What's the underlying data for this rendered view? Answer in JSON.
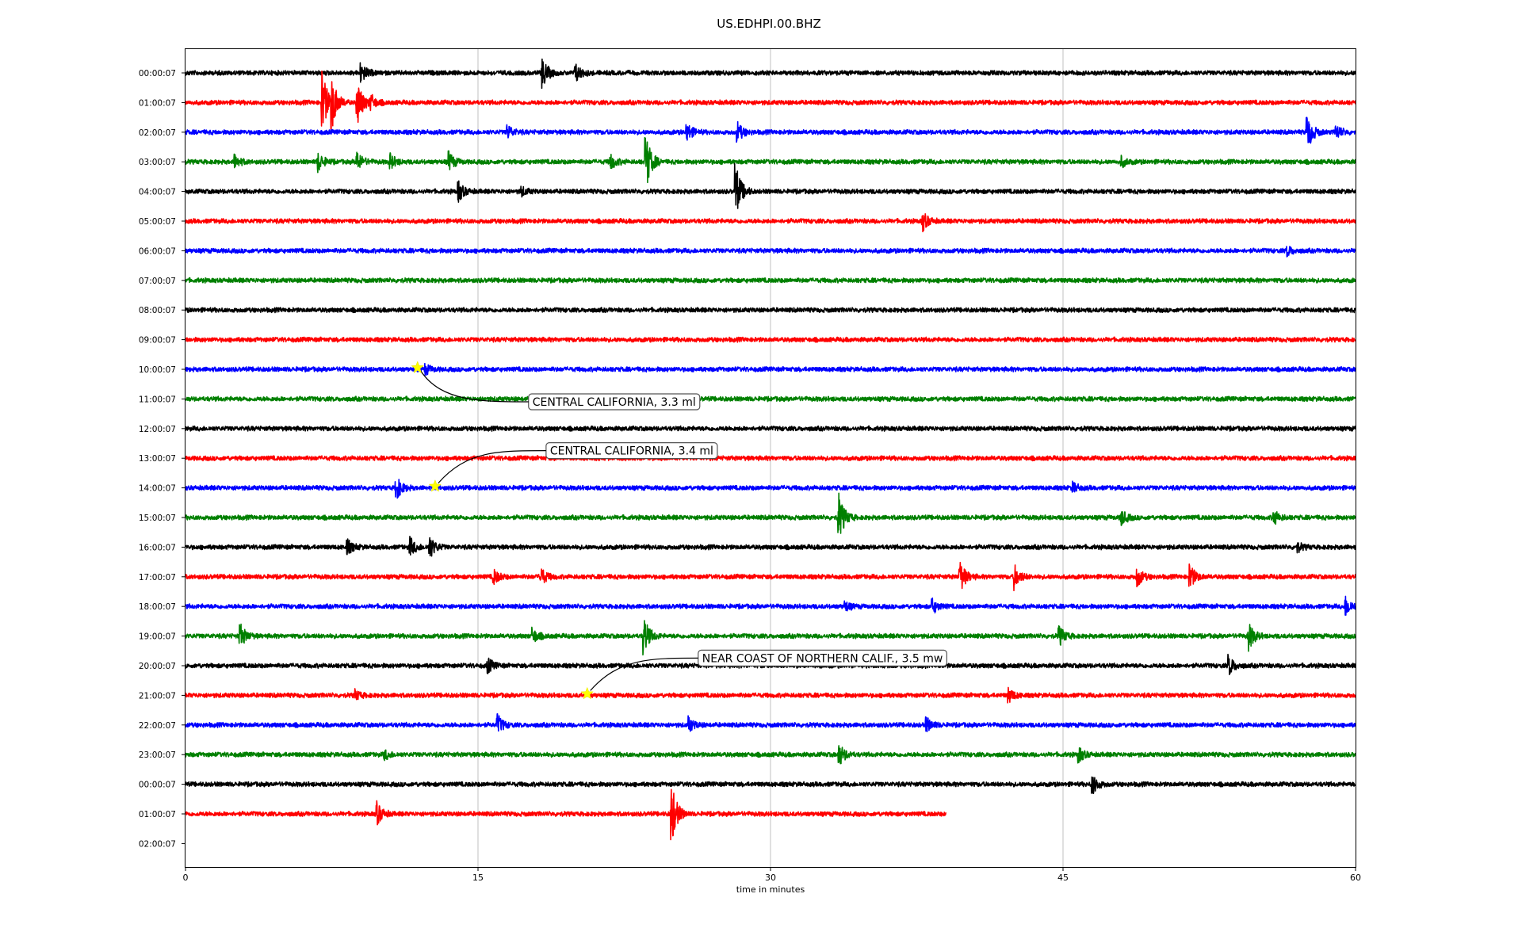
{
  "chart_data": {
    "type": "line",
    "chart_kind": "helicorder / dayplot seismogram",
    "title": "US.EDHPI.00.BHZ",
    "xlabel": "time in minutes",
    "ylabel": "",
    "xlim": [
      0,
      60
    ],
    "x_ticks": [
      0,
      15,
      30,
      45,
      60
    ],
    "x_tick_labels": [
      "0",
      "15",
      "30",
      "45",
      "60"
    ],
    "grid": "vertical lines at x ticks",
    "legend": "none",
    "row_labels": [
      "00:00:07",
      "01:00:07",
      "02:00:07",
      "03:00:07",
      "04:00:07",
      "05:00:07",
      "06:00:07",
      "07:00:07",
      "08:00:07",
      "09:00:07",
      "10:00:07",
      "11:00:07",
      "12:00:07",
      "13:00:07",
      "14:00:07",
      "15:00:07",
      "16:00:07",
      "17:00:07",
      "18:00:07",
      "19:00:07",
      "20:00:07",
      "21:00:07",
      "22:00:07",
      "23:00:07",
      "00:00:07",
      "01:00:07",
      "02:00:07"
    ],
    "trace_colors": [
      "#000000",
      "#ff0000",
      "#0000ff",
      "#008000"
    ],
    "trace_end_minutes": [
      60,
      60,
      60,
      60,
      60,
      60,
      60,
      60,
      60,
      60,
      60,
      60,
      60,
      60,
      60,
      60,
      60,
      60,
      60,
      60,
      60,
      60,
      60,
      60,
      60,
      39,
      null
    ],
    "bursts": [
      {
        "row": 0,
        "minute": 9.0,
        "amp": 4
      },
      {
        "row": 0,
        "minute": 18.3,
        "amp": 6
      },
      {
        "row": 0,
        "minute": 20.0,
        "amp": 4
      },
      {
        "row": 1,
        "minute": 7.0,
        "amp": 14
      },
      {
        "row": 1,
        "minute": 7.5,
        "amp": 10
      },
      {
        "row": 1,
        "minute": 8.8,
        "amp": 10
      },
      {
        "row": 1,
        "minute": 9.5,
        "amp": 3
      },
      {
        "row": 2,
        "minute": 16.5,
        "amp": 3
      },
      {
        "row": 2,
        "minute": 25.7,
        "amp": 4
      },
      {
        "row": 2,
        "minute": 28.3,
        "amp": 4
      },
      {
        "row": 2,
        "minute": 57.5,
        "amp": 8
      },
      {
        "row": 2,
        "minute": 59.0,
        "amp": 3
      },
      {
        "row": 3,
        "minute": 2.5,
        "amp": 3
      },
      {
        "row": 3,
        "minute": 6.8,
        "amp": 4
      },
      {
        "row": 3,
        "minute": 8.8,
        "amp": 4
      },
      {
        "row": 3,
        "minute": 10.5,
        "amp": 3
      },
      {
        "row": 3,
        "minute": 13.5,
        "amp": 4
      },
      {
        "row": 3,
        "minute": 21.8,
        "amp": 3
      },
      {
        "row": 3,
        "minute": 23.6,
        "amp": 12
      },
      {
        "row": 3,
        "minute": 48.0,
        "amp": 2
      },
      {
        "row": 4,
        "minute": 14.0,
        "amp": 4
      },
      {
        "row": 4,
        "minute": 17.2,
        "amp": 2
      },
      {
        "row": 4,
        "minute": 28.2,
        "amp": 12
      },
      {
        "row": 5,
        "minute": 37.8,
        "amp": 4
      },
      {
        "row": 6,
        "minute": 56.5,
        "amp": 2
      },
      {
        "row": 10,
        "minute": 12.3,
        "amp": 2
      },
      {
        "row": 14,
        "minute": 10.8,
        "amp": 5
      },
      {
        "row": 14,
        "minute": 45.5,
        "amp": 2
      },
      {
        "row": 15,
        "minute": 33.5,
        "amp": 10
      },
      {
        "row": 15,
        "minute": 48.0,
        "amp": 3
      },
      {
        "row": 15,
        "minute": 55.8,
        "amp": 3
      },
      {
        "row": 16,
        "minute": 8.3,
        "amp": 3
      },
      {
        "row": 16,
        "minute": 11.5,
        "amp": 4
      },
      {
        "row": 16,
        "minute": 12.5,
        "amp": 5
      },
      {
        "row": 16,
        "minute": 57.0,
        "amp": 2
      },
      {
        "row": 17,
        "minute": 15.8,
        "amp": 3
      },
      {
        "row": 17,
        "minute": 18.2,
        "amp": 4
      },
      {
        "row": 17,
        "minute": 39.7,
        "amp": 7
      },
      {
        "row": 17,
        "minute": 42.5,
        "amp": 5
      },
      {
        "row": 17,
        "minute": 48.8,
        "amp": 4
      },
      {
        "row": 17,
        "minute": 51.5,
        "amp": 5
      },
      {
        "row": 18,
        "minute": 33.8,
        "amp": 2
      },
      {
        "row": 18,
        "minute": 38.3,
        "amp": 3
      },
      {
        "row": 18,
        "minute": 59.5,
        "amp": 4
      },
      {
        "row": 19,
        "minute": 2.8,
        "amp": 5
      },
      {
        "row": 19,
        "minute": 17.8,
        "amp": 3
      },
      {
        "row": 19,
        "minute": 23.5,
        "amp": 8
      },
      {
        "row": 19,
        "minute": 44.8,
        "amp": 4
      },
      {
        "row": 19,
        "minute": 54.5,
        "amp": 6
      },
      {
        "row": 20,
        "minute": 15.5,
        "amp": 3
      },
      {
        "row": 20,
        "minute": 53.5,
        "amp": 4
      },
      {
        "row": 21,
        "minute": 8.7,
        "amp": 2
      },
      {
        "row": 21,
        "minute": 42.2,
        "amp": 3
      },
      {
        "row": 22,
        "minute": 16.0,
        "amp": 4
      },
      {
        "row": 22,
        "minute": 25.8,
        "amp": 3
      },
      {
        "row": 22,
        "minute": 38.0,
        "amp": 3
      },
      {
        "row": 23,
        "minute": 10.2,
        "amp": 2
      },
      {
        "row": 23,
        "minute": 33.5,
        "amp": 5
      },
      {
        "row": 23,
        "minute": 45.8,
        "amp": 3
      },
      {
        "row": 24,
        "minute": 46.5,
        "amp": 4
      },
      {
        "row": 25,
        "minute": 9.8,
        "amp": 5
      },
      {
        "row": 25,
        "minute": 24.9,
        "amp": 14
      }
    ],
    "events": [
      {
        "row": 10,
        "minute": 11.9,
        "label": "CENTRAL CALIFORNIA, 3.3 ml",
        "label_side": "below"
      },
      {
        "row": 14,
        "minute": 12.8,
        "label": "CENTRAL CALIFORNIA, 3.4 ml",
        "label_side": "above"
      },
      {
        "row": 21,
        "minute": 20.6,
        "label": "NEAR COAST OF NORTHERN CALIF., 3.5 mw",
        "label_side": "above"
      }
    ]
  }
}
